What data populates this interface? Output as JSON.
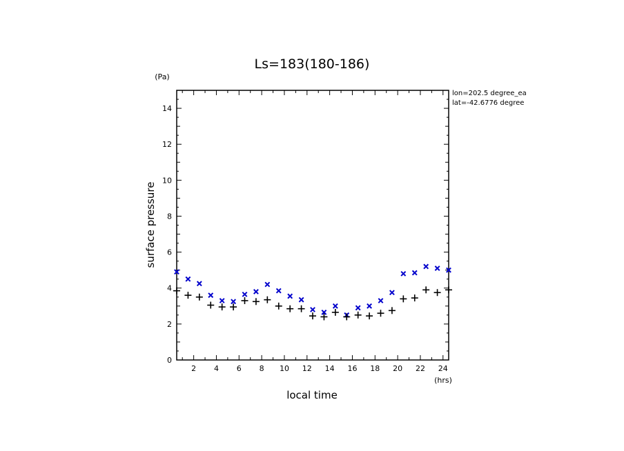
{
  "chart_data": {
    "type": "scatter",
    "title": "Ls=183(180-186)",
    "xlabel": "local time",
    "ylabel": "surface pressure",
    "x_unit": "(hrs)",
    "y_unit": "(Pa)",
    "xlim": [
      0.5,
      24.5
    ],
    "ylim": [
      0,
      15
    ],
    "xticks": [
      2,
      4,
      6,
      8,
      10,
      12,
      14,
      16,
      18,
      20,
      22,
      24
    ],
    "yticks": [
      0,
      2,
      4,
      6,
      8,
      10,
      12,
      14
    ],
    "annotations": [
      "lon=202.5 degree_ea",
      "lat=-42.6776 degree"
    ],
    "series": [
      {
        "marker": "x",
        "color": "#0000cc",
        "x": [
          0.5,
          1.5,
          2.5,
          3.5,
          4.5,
          5.5,
          6.5,
          7.5,
          8.5,
          9.5,
          10.5,
          11.5,
          12.5,
          13.5,
          14.5,
          15.5,
          16.5,
          17.5,
          18.5,
          19.5,
          20.5,
          21.5,
          22.5,
          23.5,
          24.5
        ],
        "y": [
          4.9,
          4.5,
          4.25,
          3.6,
          3.3,
          3.25,
          3.65,
          3.8,
          4.2,
          3.85,
          3.55,
          3.35,
          2.8,
          2.65,
          3.0,
          2.5,
          2.9,
          3.0,
          3.3,
          3.75,
          4.8,
          4.85,
          5.2,
          5.1,
          5.0
        ]
      },
      {
        "marker": "+",
        "color": "#000000",
        "x": [
          0.5,
          1.5,
          2.5,
          3.5,
          4.5,
          5.5,
          6.5,
          7.5,
          8.5,
          9.5,
          10.5,
          11.5,
          12.5,
          13.5,
          14.5,
          15.5,
          16.5,
          17.5,
          18.5,
          19.5,
          20.5,
          21.5,
          22.5,
          23.5,
          24.5
        ],
        "y": [
          3.85,
          3.6,
          3.5,
          3.05,
          2.95,
          2.95,
          3.3,
          3.25,
          3.35,
          3.0,
          2.85,
          2.85,
          2.45,
          2.4,
          2.65,
          2.4,
          2.5,
          2.45,
          2.6,
          2.75,
          3.4,
          3.45,
          3.9,
          3.75,
          3.9
        ]
      }
    ]
  }
}
